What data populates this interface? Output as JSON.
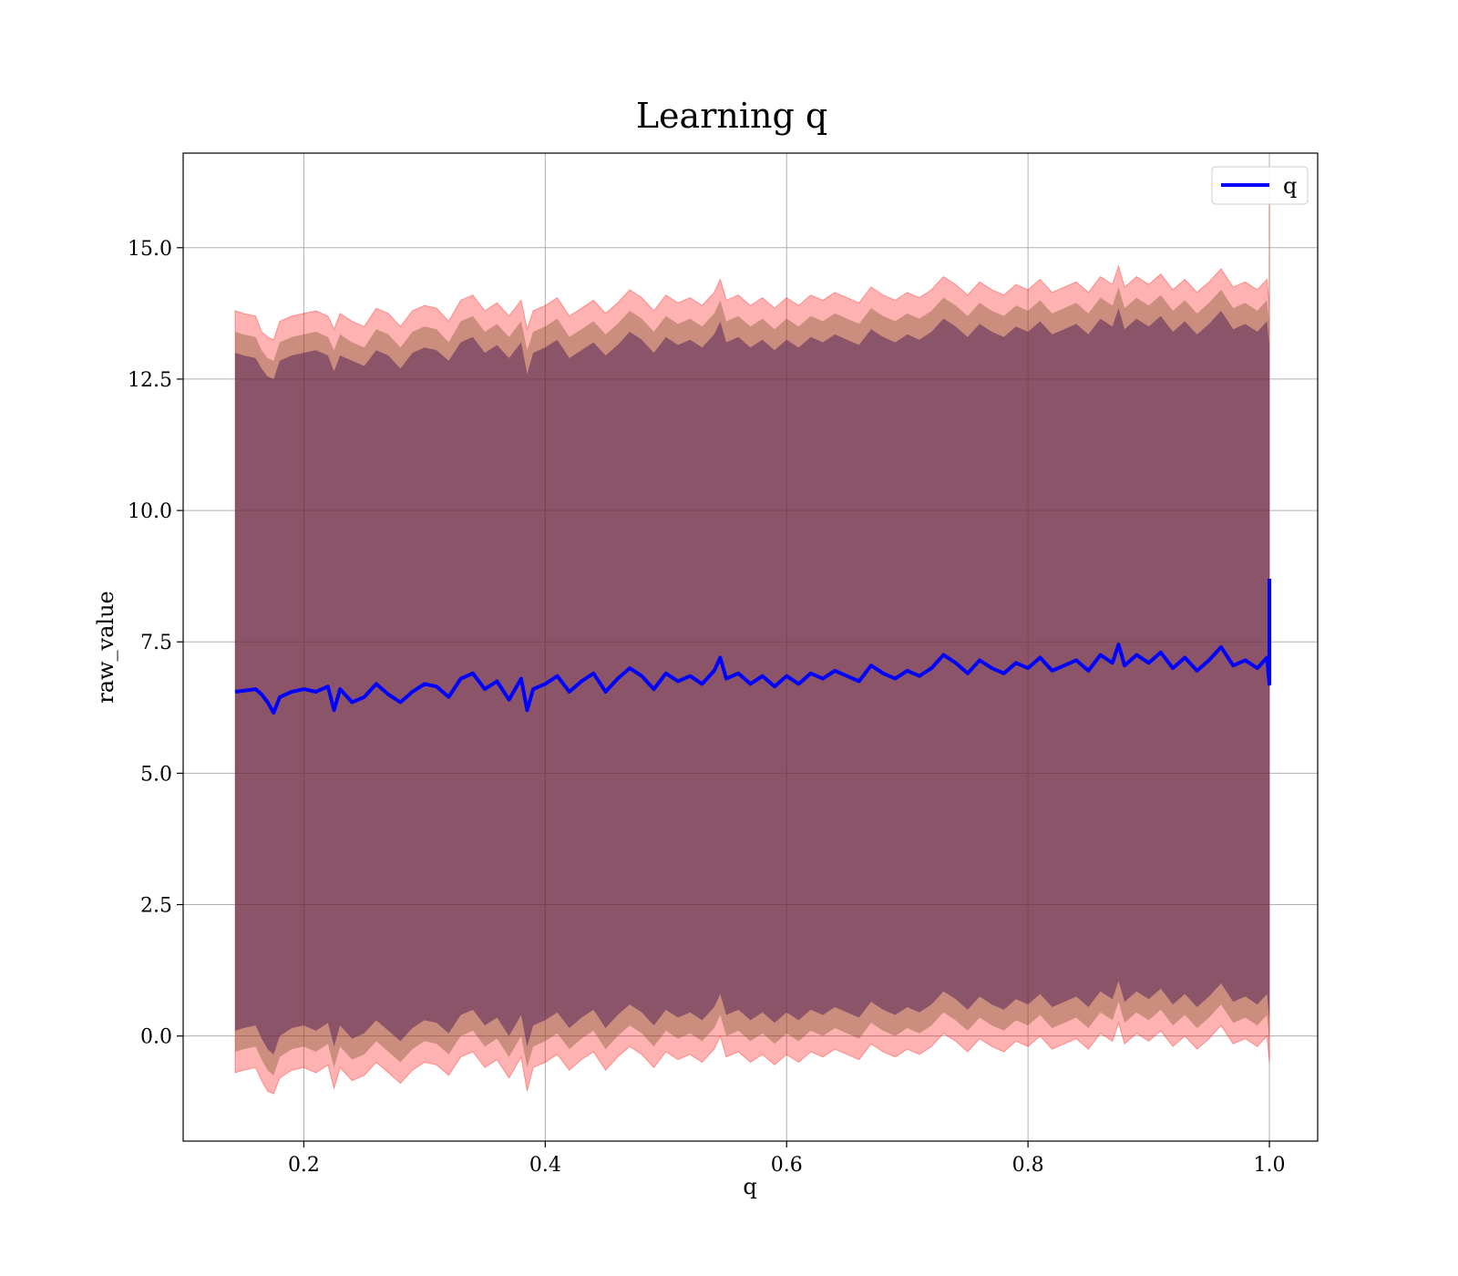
{
  "chart_data": {
    "type": "line",
    "title": "Learning q",
    "xlabel": "q",
    "ylabel": "raw_value",
    "xlim": [
      0.1,
      1.04
    ],
    "ylim": [
      -2.0,
      16.8
    ],
    "xticks": [
      0.2,
      0.4,
      0.6,
      0.8,
      1.0
    ],
    "xtick_labels": [
      "0.2",
      "0.4",
      "0.6",
      "0.8",
      "1.0"
    ],
    "yticks": [
      0.0,
      2.5,
      5.0,
      7.5,
      10.0,
      12.5,
      15.0
    ],
    "ytick_labels": [
      "0.0",
      "2.5",
      "5.0",
      "7.5",
      "10.0",
      "12.5",
      "15.0"
    ],
    "grid": true,
    "legend": {
      "position": "top-right",
      "entries": [
        {
          "label": "q",
          "color": "#0000ff"
        }
      ]
    },
    "series": [
      {
        "name": "q",
        "color": "#0000ff",
        "x": [
          0.143,
          0.15,
          0.16,
          0.165,
          0.17,
          0.175,
          0.18,
          0.19,
          0.2,
          0.21,
          0.22,
          0.225,
          0.23,
          0.24,
          0.25,
          0.26,
          0.27,
          0.28,
          0.29,
          0.3,
          0.31,
          0.32,
          0.33,
          0.34,
          0.35,
          0.36,
          0.37,
          0.38,
          0.385,
          0.39,
          0.4,
          0.41,
          0.42,
          0.43,
          0.44,
          0.45,
          0.46,
          0.47,
          0.48,
          0.49,
          0.5,
          0.51,
          0.52,
          0.53,
          0.54,
          0.545,
          0.55,
          0.56,
          0.57,
          0.58,
          0.59,
          0.6,
          0.61,
          0.62,
          0.63,
          0.64,
          0.65,
          0.66,
          0.67,
          0.68,
          0.69,
          0.7,
          0.71,
          0.72,
          0.73,
          0.74,
          0.75,
          0.76,
          0.77,
          0.78,
          0.79,
          0.8,
          0.81,
          0.82,
          0.83,
          0.84,
          0.85,
          0.86,
          0.87,
          0.875,
          0.88,
          0.89,
          0.9,
          0.91,
          0.92,
          0.93,
          0.94,
          0.95,
          0.96,
          0.97,
          0.98,
          0.99,
          0.998,
          1.0,
          1.0
        ],
        "values": [
          6.55,
          6.57,
          6.6,
          6.5,
          6.35,
          6.15,
          6.45,
          6.55,
          6.6,
          6.55,
          6.65,
          6.2,
          6.6,
          6.35,
          6.45,
          6.7,
          6.5,
          6.35,
          6.55,
          6.7,
          6.65,
          6.45,
          6.8,
          6.9,
          6.6,
          6.75,
          6.4,
          6.8,
          6.2,
          6.6,
          6.7,
          6.85,
          6.55,
          6.75,
          6.9,
          6.55,
          6.8,
          7.0,
          6.85,
          6.6,
          6.9,
          6.75,
          6.85,
          6.7,
          6.95,
          7.2,
          6.8,
          6.9,
          6.7,
          6.85,
          6.65,
          6.85,
          6.7,
          6.9,
          6.8,
          6.95,
          6.85,
          6.75,
          7.05,
          6.9,
          6.8,
          6.95,
          6.85,
          7.0,
          7.25,
          7.1,
          6.9,
          7.15,
          7.0,
          6.9,
          7.1,
          7.0,
          7.2,
          6.95,
          7.05,
          7.15,
          6.95,
          7.25,
          7.1,
          7.45,
          7.05,
          7.25,
          7.1,
          7.3,
          7.0,
          7.2,
          6.95,
          7.15,
          7.4,
          7.05,
          7.15,
          7.0,
          7.2,
          6.7,
          8.7
        ],
        "upper_outer": [
          13.8,
          13.75,
          13.7,
          13.4,
          13.3,
          13.25,
          13.6,
          13.7,
          13.75,
          13.8,
          13.7,
          13.45,
          13.75,
          13.6,
          13.5,
          13.85,
          13.75,
          13.5,
          13.8,
          13.9,
          13.85,
          13.6,
          14.0,
          14.1,
          13.8,
          13.95,
          13.7,
          14.0,
          13.45,
          13.8,
          13.9,
          14.05,
          13.7,
          13.85,
          14.0,
          13.75,
          13.95,
          14.2,
          14.05,
          13.8,
          14.1,
          13.95,
          14.05,
          13.9,
          14.15,
          14.4,
          14.0,
          14.1,
          13.9,
          14.05,
          13.85,
          14.05,
          13.9,
          14.1,
          14.0,
          14.15,
          14.05,
          13.95,
          14.25,
          14.1,
          14.0,
          14.15,
          14.05,
          14.2,
          14.45,
          14.3,
          14.1,
          14.35,
          14.2,
          14.1,
          14.3,
          14.2,
          14.4,
          14.15,
          14.25,
          14.35,
          14.15,
          14.45,
          14.3,
          14.65,
          14.25,
          14.45,
          14.3,
          14.5,
          14.2,
          14.4,
          14.15,
          14.35,
          14.6,
          14.25,
          14.35,
          14.2,
          14.4,
          13.9,
          15.9
        ],
        "upper_mid": [
          13.4,
          13.35,
          13.3,
          13.05,
          12.9,
          12.85,
          13.2,
          13.3,
          13.35,
          13.4,
          13.3,
          13.05,
          13.35,
          13.2,
          13.1,
          13.45,
          13.35,
          13.1,
          13.4,
          13.5,
          13.45,
          13.2,
          13.6,
          13.7,
          13.4,
          13.55,
          13.3,
          13.6,
          13.05,
          13.4,
          13.5,
          13.65,
          13.3,
          13.45,
          13.6,
          13.35,
          13.55,
          13.8,
          13.65,
          13.4,
          13.7,
          13.55,
          13.65,
          13.5,
          13.75,
          14.0,
          13.6,
          13.7,
          13.5,
          13.65,
          13.45,
          13.65,
          13.5,
          13.7,
          13.6,
          13.75,
          13.65,
          13.55,
          13.85,
          13.7,
          13.6,
          13.75,
          13.65,
          13.8,
          14.05,
          13.9,
          13.7,
          13.95,
          13.8,
          13.7,
          13.9,
          13.8,
          14.0,
          13.75,
          13.85,
          13.95,
          13.75,
          14.05,
          13.9,
          14.25,
          13.85,
          14.05,
          13.9,
          14.1,
          13.8,
          14.0,
          13.75,
          13.95,
          14.2,
          13.85,
          13.95,
          13.8,
          14.0,
          13.5,
          15.5
        ],
        "upper_inner": [
          13.0,
          12.95,
          12.9,
          12.7,
          12.55,
          12.5,
          12.85,
          12.95,
          13.0,
          13.05,
          12.95,
          12.65,
          12.95,
          12.85,
          12.75,
          13.05,
          12.95,
          12.7,
          13.0,
          13.1,
          13.05,
          12.85,
          13.2,
          13.3,
          13.0,
          13.15,
          12.9,
          13.2,
          12.6,
          13.0,
          13.1,
          13.25,
          12.9,
          13.05,
          13.2,
          12.95,
          13.15,
          13.4,
          13.25,
          13.0,
          13.3,
          13.15,
          13.25,
          13.1,
          13.35,
          13.6,
          13.2,
          13.3,
          13.1,
          13.25,
          13.05,
          13.25,
          13.1,
          13.3,
          13.2,
          13.35,
          13.25,
          13.15,
          13.45,
          13.3,
          13.2,
          13.35,
          13.25,
          13.4,
          13.65,
          13.5,
          13.3,
          13.55,
          13.4,
          13.3,
          13.5,
          13.4,
          13.6,
          13.35,
          13.45,
          13.55,
          13.35,
          13.65,
          13.5,
          13.85,
          13.45,
          13.65,
          13.5,
          13.7,
          13.4,
          13.6,
          13.35,
          13.55,
          13.8,
          13.45,
          13.55,
          13.4,
          13.6,
          13.1,
          15.1
        ],
        "lower_inner": [
          0.1,
          0.15,
          0.2,
          -0.05,
          -0.25,
          -0.35,
          0.0,
          0.15,
          0.2,
          0.1,
          0.25,
          -0.2,
          0.2,
          -0.05,
          0.05,
          0.3,
          0.1,
          -0.1,
          0.15,
          0.3,
          0.25,
          0.05,
          0.4,
          0.5,
          0.2,
          0.35,
          0.0,
          0.4,
          -0.2,
          0.2,
          0.3,
          0.45,
          0.15,
          0.35,
          0.5,
          0.15,
          0.4,
          0.6,
          0.45,
          0.2,
          0.5,
          0.35,
          0.45,
          0.3,
          0.55,
          0.8,
          0.4,
          0.5,
          0.3,
          0.45,
          0.25,
          0.45,
          0.3,
          0.5,
          0.4,
          0.55,
          0.45,
          0.35,
          0.65,
          0.5,
          0.4,
          0.55,
          0.45,
          0.6,
          0.85,
          0.7,
          0.5,
          0.75,
          0.6,
          0.5,
          0.7,
          0.6,
          0.8,
          0.55,
          0.65,
          0.75,
          0.55,
          0.85,
          0.7,
          1.05,
          0.65,
          0.85,
          0.7,
          0.9,
          0.6,
          0.8,
          0.55,
          0.75,
          1.0,
          0.65,
          0.75,
          0.6,
          0.8,
          0.3,
          0.6
        ],
        "lower_mid": [
          -0.3,
          -0.25,
          -0.2,
          -0.45,
          -0.65,
          -0.75,
          -0.4,
          -0.25,
          -0.2,
          -0.3,
          -0.15,
          -0.6,
          -0.2,
          -0.45,
          -0.35,
          -0.1,
          -0.3,
          -0.5,
          -0.25,
          -0.1,
          -0.15,
          -0.35,
          0.0,
          0.1,
          -0.2,
          -0.05,
          -0.4,
          0.0,
          -0.6,
          -0.2,
          -0.1,
          0.05,
          -0.25,
          -0.05,
          0.1,
          -0.25,
          0.0,
          0.2,
          0.05,
          -0.2,
          0.1,
          -0.05,
          0.05,
          -0.1,
          0.15,
          0.4,
          0.0,
          0.1,
          -0.1,
          0.05,
          -0.15,
          0.05,
          -0.1,
          0.1,
          0.0,
          0.15,
          0.05,
          -0.05,
          0.25,
          0.1,
          0.0,
          0.15,
          0.05,
          0.2,
          0.45,
          0.3,
          0.1,
          0.35,
          0.2,
          0.1,
          0.3,
          0.2,
          0.4,
          0.15,
          0.25,
          0.35,
          0.15,
          0.45,
          0.3,
          0.65,
          0.25,
          0.45,
          0.3,
          0.5,
          0.2,
          0.4,
          0.15,
          0.35,
          0.6,
          0.25,
          0.35,
          0.2,
          0.4,
          -0.1,
          0.2
        ],
        "lower_outer": [
          -0.7,
          -0.65,
          -0.6,
          -0.85,
          -1.05,
          -1.1,
          -0.8,
          -0.65,
          -0.6,
          -0.7,
          -0.55,
          -1.0,
          -0.6,
          -0.85,
          -0.75,
          -0.5,
          -0.7,
          -0.9,
          -0.65,
          -0.5,
          -0.55,
          -0.75,
          -0.4,
          -0.3,
          -0.6,
          -0.45,
          -0.8,
          -0.4,
          -1.05,
          -0.6,
          -0.5,
          -0.35,
          -0.65,
          -0.45,
          -0.3,
          -0.65,
          -0.4,
          -0.2,
          -0.35,
          -0.6,
          -0.3,
          -0.45,
          -0.35,
          -0.5,
          -0.25,
          0.0,
          -0.4,
          -0.3,
          -0.5,
          -0.35,
          -0.55,
          -0.35,
          -0.5,
          -0.3,
          -0.4,
          -0.25,
          -0.35,
          -0.45,
          -0.15,
          -0.3,
          -0.4,
          -0.25,
          -0.35,
          -0.2,
          0.05,
          -0.1,
          -0.3,
          -0.05,
          -0.2,
          -0.3,
          -0.1,
          -0.2,
          0.0,
          -0.25,
          -0.15,
          -0.05,
          -0.25,
          0.05,
          -0.1,
          0.25,
          -0.15,
          0.05,
          -0.1,
          0.1,
          -0.2,
          0.0,
          -0.25,
          -0.05,
          0.2,
          -0.15,
          -0.05,
          -0.2,
          0.0,
          -0.5,
          -0.2
        ]
      }
    ]
  }
}
